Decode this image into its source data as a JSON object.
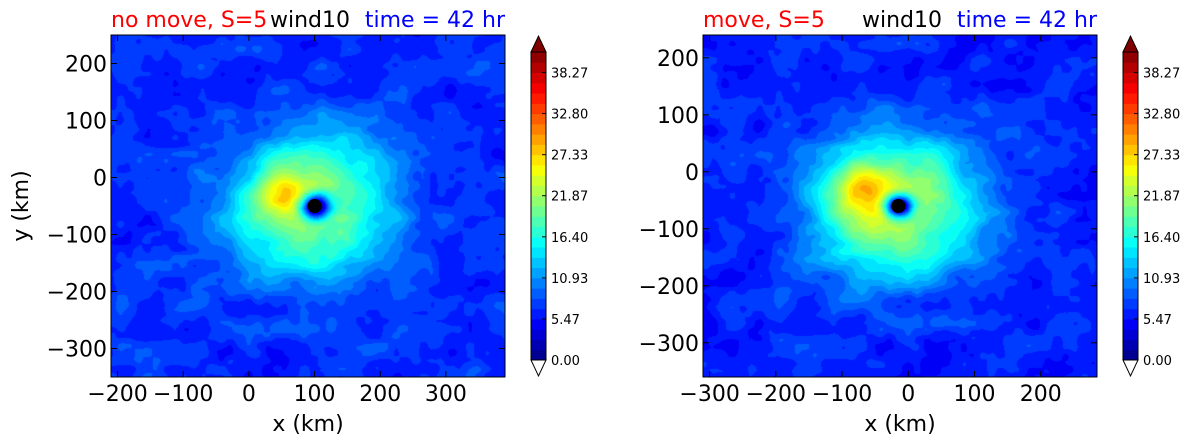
{
  "colors": {
    "title_red": "#ff0000",
    "title_blue": "#0000ff",
    "center_marker": "#000000",
    "colormap": "jet"
  },
  "chart_data": [
    {
      "type": "heatmap",
      "title_left": "no move, S=5",
      "title_center": "wind10",
      "title_right": "time = 42 hr",
      "xlabel": "x (km)",
      "ylabel": "y (km)",
      "xlim": [
        -210,
        390
      ],
      "ylim": [
        -350,
        250
      ],
      "xticks": [
        -200,
        -100,
        0,
        100,
        200,
        300
      ],
      "yticks": [
        200,
        100,
        0,
        -100,
        -200,
        -300
      ],
      "center": {
        "x": 100,
        "y": -50
      },
      "colorbar": {
        "min": 0.0,
        "max": 41.0,
        "ticks": [
          0.0,
          5.47,
          10.93,
          16.4,
          21.87,
          27.33,
          32.8,
          38.27
        ],
        "tick_labels": [
          "0.00",
          "5.47",
          "10.93",
          "16.40",
          "21.87",
          "27.33",
          "32.80",
          "38.27"
        ]
      },
      "field": {
        "base": 6.5,
        "peak": 18.5,
        "peak_x": 60,
        "peak_y": -30,
        "core_radius": 90,
        "eye_radius": 22,
        "outer_radius": 210,
        "jet_angle_deg": 150,
        "jet_strength": 6
      }
    },
    {
      "type": "heatmap",
      "title_left": "move, S=5",
      "title_center": "wind10",
      "title_right": "time = 42 hr",
      "xlabel": "x (km)",
      "ylabel": "",
      "xlim": [
        -310,
        285
      ],
      "ylim": [
        -360,
        240
      ],
      "xticks": [
        -300,
        -200,
        -100,
        0,
        100,
        200
      ],
      "yticks": [
        200,
        100,
        0,
        -100,
        -200,
        -300
      ],
      "center": {
        "x": -15,
        "y": -60
      },
      "colorbar": {
        "min": 0.0,
        "max": 41.0,
        "ticks": [
          0.0,
          5.47,
          10.93,
          16.4,
          21.87,
          27.33,
          32.8,
          38.27
        ],
        "tick_labels": [
          "0.00",
          "5.47",
          "10.93",
          "16.40",
          "21.87",
          "27.33",
          "32.80",
          "38.27"
        ]
      },
      "field": {
        "base": 6.0,
        "peak": 20.0,
        "peak_x": -70,
        "peak_y": -30,
        "core_radius": 95,
        "eye_radius": 20,
        "outer_radius": 220,
        "jet_angle_deg": 160,
        "jet_strength": 7
      }
    }
  ]
}
